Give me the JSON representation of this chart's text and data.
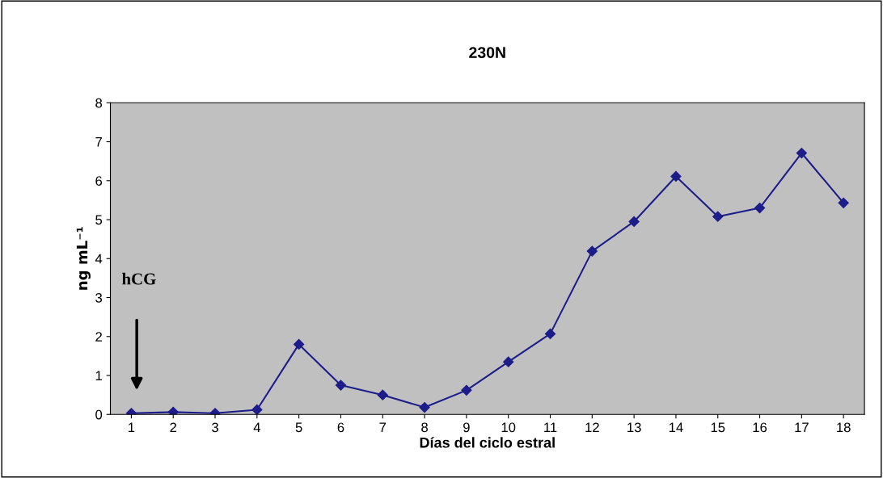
{
  "chart_data": {
    "type": "line",
    "title": "230N",
    "xlabel": "Días del ciclo estral",
    "ylabel": "ng mL⁻¹",
    "categories": [
      "1",
      "2",
      "3",
      "4",
      "5",
      "6",
      "7",
      "8",
      "9",
      "10",
      "11",
      "12",
      "13",
      "14",
      "15",
      "16",
      "17",
      "18"
    ],
    "series": [
      {
        "color": "#1c1c8a",
        "values": [
          0.03,
          0.06,
          0.03,
          0.12,
          1.8,
          0.75,
          0.5,
          0.18,
          0.62,
          1.35,
          2.07,
          4.19,
          4.95,
          6.11,
          5.08,
          5.3,
          6.71,
          5.43
        ]
      }
    ],
    "ylim": [
      0,
      8
    ],
    "yticks": [
      0,
      1,
      2,
      3,
      4,
      5,
      6,
      7,
      8
    ],
    "annotations": [
      "hCG"
    ],
    "marker": "diamond",
    "line_style": "solid",
    "grid": false,
    "legend": false
  }
}
